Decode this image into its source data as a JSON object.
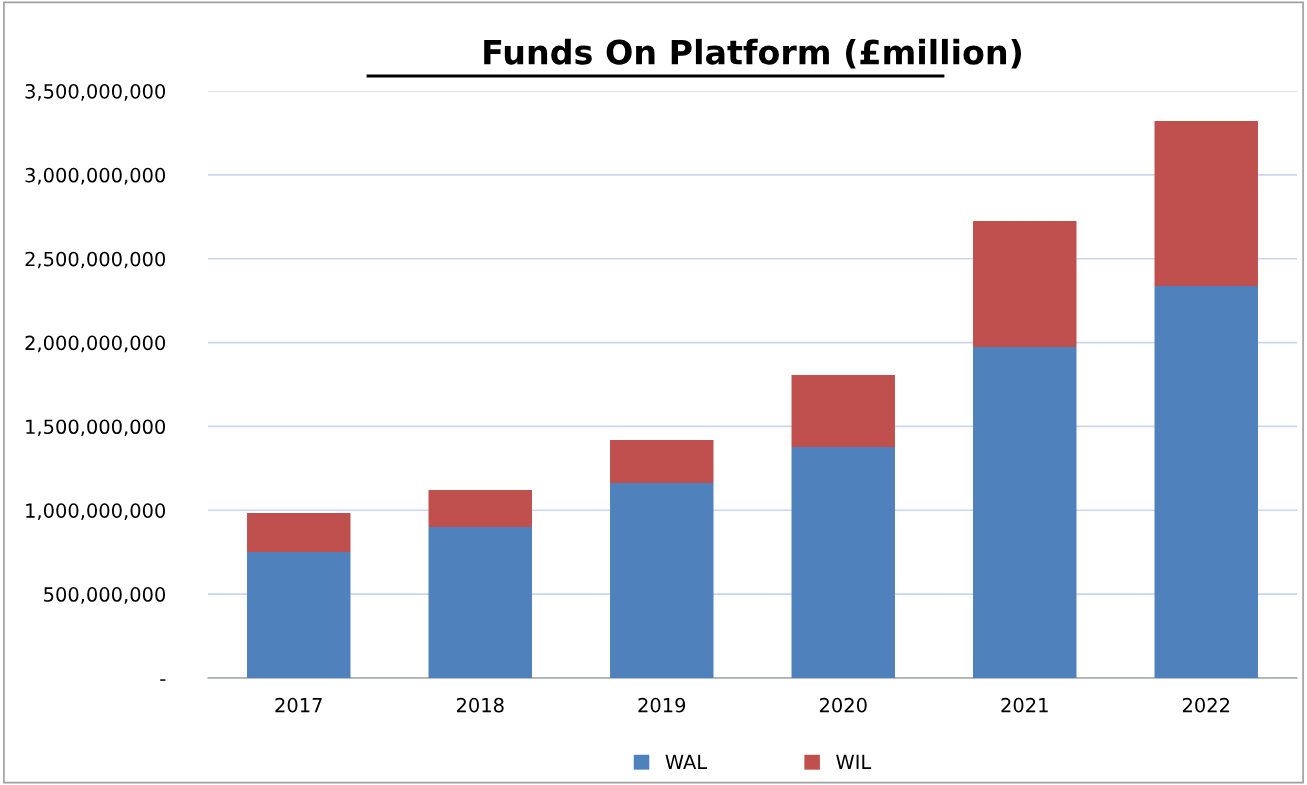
{
  "chart_data": {
    "type": "bar",
    "title": "Funds On Platform (£million)",
    "categories": [
      "2017",
      "2018",
      "2019",
      "2020",
      "2021",
      "2022"
    ],
    "series": [
      {
        "name": "WAL",
        "color": "#4f81bd",
        "values": [
          751000000,
          900000000,
          1163000000,
          1377000000,
          1974000000,
          2337000000
        ]
      },
      {
        "name": "WIL",
        "color": "#c0504d",
        "values": [
          233000000,
          221000000,
          256000000,
          430000000,
          751000000,
          984000000
        ]
      }
    ],
    "stacked": true,
    "ylim": [
      0,
      3500000000
    ],
    "yticks": [
      {
        "value": 0,
        "label": "-"
      },
      {
        "value": 500000000,
        "label": "500,000,000"
      },
      {
        "value": 1000000000,
        "label": "1,000,000,000"
      },
      {
        "value": 1500000000,
        "label": "1,500,000,000"
      },
      {
        "value": 2000000000,
        "label": "2,000,000,000"
      },
      {
        "value": 2500000000,
        "label": "2,500,000,000"
      },
      {
        "value": 3000000000,
        "label": "3,000,000,000"
      },
      {
        "value": 3500000000,
        "label": "3,500,000,000"
      }
    ],
    "grid": "y",
    "legend": "bottom"
  }
}
